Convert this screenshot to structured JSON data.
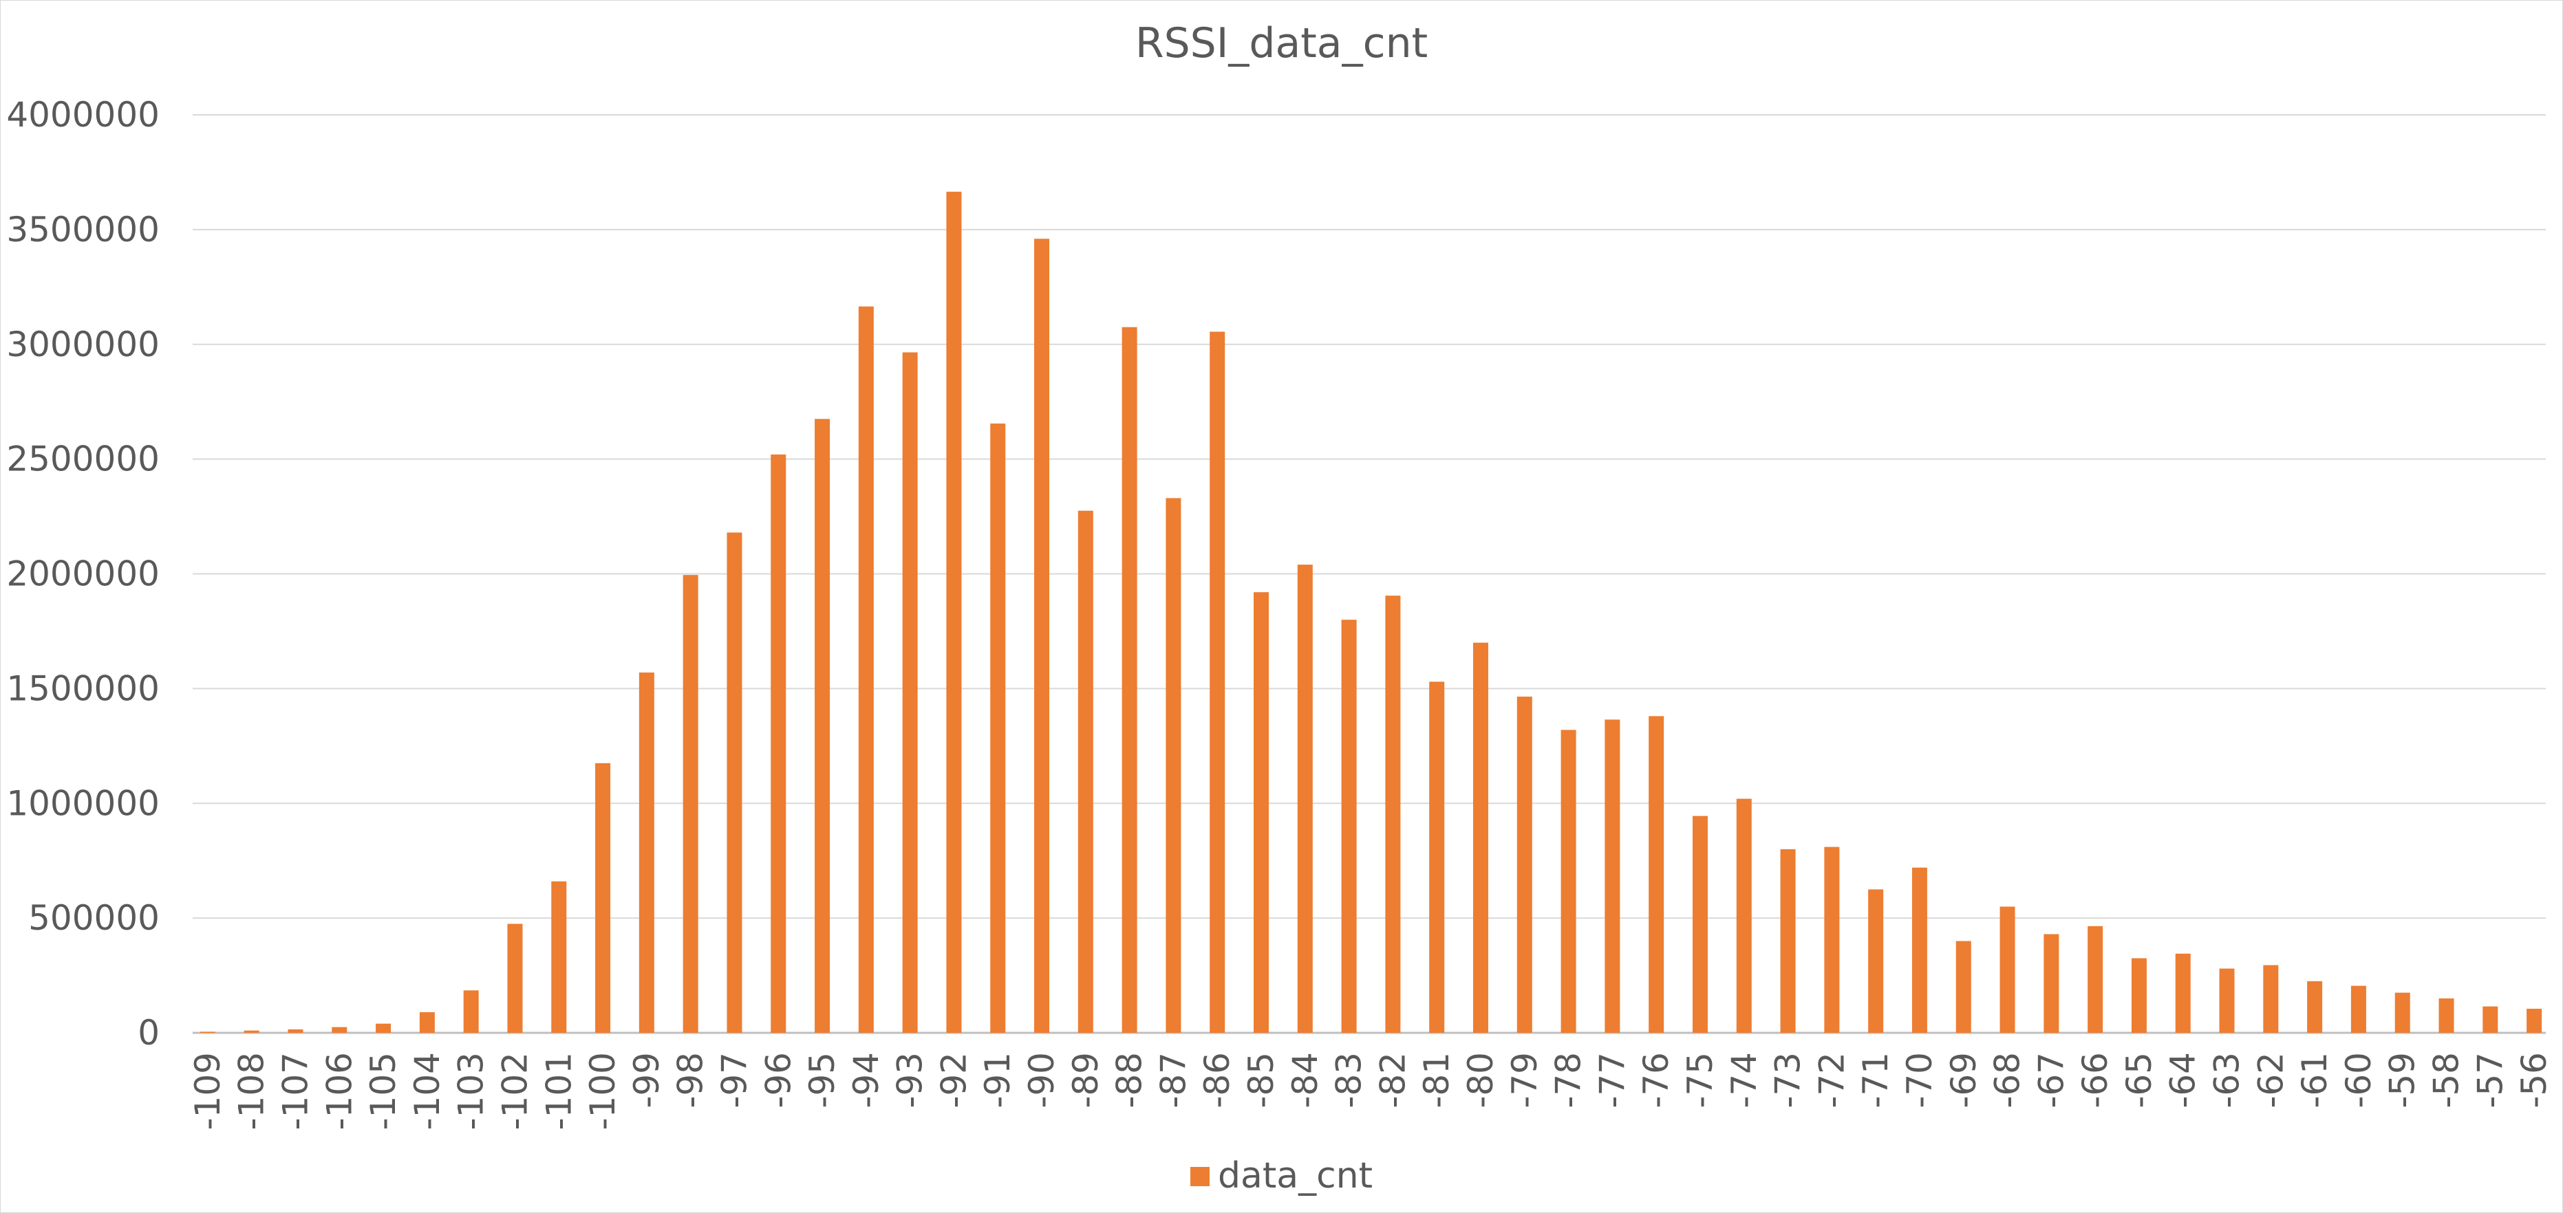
{
  "chart_data": {
    "type": "bar",
    "title": "RSSI_data_cnt",
    "xlabel": "",
    "ylabel": "",
    "ylim": [
      0,
      4000000
    ],
    "yticks": [
      0,
      500000,
      1000000,
      1500000,
      2000000,
      2500000,
      3000000,
      3500000,
      4000000
    ],
    "grid": true,
    "legend_position": "bottom",
    "bar_color": "#ED7D31",
    "categories": [
      "-109",
      "-108",
      "-107",
      "-106",
      "-105",
      "-104",
      "-103",
      "-102",
      "-101",
      "-100",
      "-99",
      "-98",
      "-97",
      "-96",
      "-95",
      "-94",
      "-93",
      "-92",
      "-91",
      "-90",
      "-89",
      "-88",
      "-87",
      "-86",
      "-85",
      "-84",
      "-83",
      "-82",
      "-81",
      "-80",
      "-79",
      "-78",
      "-77",
      "-76",
      "-75",
      "-74",
      "-73",
      "-72",
      "-71",
      "-70",
      "-69",
      "-68",
      "-67",
      "-66",
      "-65",
      "-64",
      "-63",
      "-62",
      "-61",
      "-60",
      "-59",
      "-58",
      "-57",
      "-56"
    ],
    "series": [
      {
        "name": "data_cnt",
        "values": [
          5000,
          10000,
          15000,
          25000,
          40000,
          90000,
          185000,
          475000,
          660000,
          1175000,
          1570000,
          1995000,
          2180000,
          2520000,
          2675000,
          3165000,
          2965000,
          3665000,
          2655000,
          3460000,
          2275000,
          3075000,
          2330000,
          3055000,
          1920000,
          2040000,
          1800000,
          1905000,
          1530000,
          1700000,
          1465000,
          1320000,
          1365000,
          1380000,
          945000,
          1020000,
          800000,
          810000,
          625000,
          720000,
          400000,
          550000,
          430000,
          465000,
          325000,
          345000,
          280000,
          295000,
          225000,
          205000,
          175000,
          150000,
          115000,
          105000
        ]
      }
    ]
  }
}
